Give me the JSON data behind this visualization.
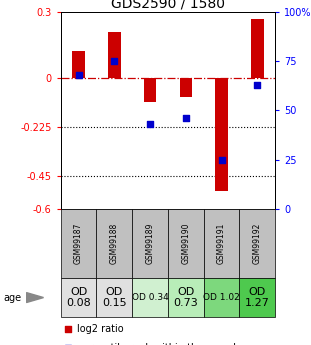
{
  "title": "GDS2590 / 1580",
  "samples": [
    "GSM99187",
    "GSM99188",
    "GSM99189",
    "GSM99190",
    "GSM99191",
    "GSM99192"
  ],
  "log2_ratios": [
    0.12,
    0.21,
    -0.11,
    -0.09,
    -0.52,
    0.27
  ],
  "percentile_ranks": [
    68,
    75,
    43,
    46,
    25,
    63
  ],
  "ylim_left": [
    -0.6,
    0.3
  ],
  "ylim_right": [
    0,
    100
  ],
  "yticks_left": [
    0.3,
    0,
    -0.225,
    -0.45,
    -0.6
  ],
  "yticks_right": [
    100,
    75,
    50,
    25,
    0
  ],
  "od_values": [
    "OD\n0.08",
    "OD\n0.15",
    "OD 0.34",
    "OD\n0.73",
    "OD 1.02",
    "OD\n1.27"
  ],
  "od_fontsize": [
    8,
    8,
    6.5,
    8,
    6.5,
    8
  ],
  "od_colors": [
    "#e0e0e0",
    "#e0e0e0",
    "#d0f0d0",
    "#b8edb8",
    "#7dd87d",
    "#4ec94e"
  ],
  "cell_colors": [
    "#c0c0c0",
    "#c0c0c0",
    "#c0c0c0",
    "#c0c0c0",
    "#c0c0c0",
    "#c0c0c0"
  ],
  "bar_color": "#cc0000",
  "dot_color": "#0000cc",
  "bar_width": 0.35,
  "background_color": "#ffffff",
  "zero_line_color": "#cc0000",
  "dotted_line_color": "#000000",
  "title_fontsize": 10,
  "tick_fontsize": 7,
  "legend_fontsize": 7
}
